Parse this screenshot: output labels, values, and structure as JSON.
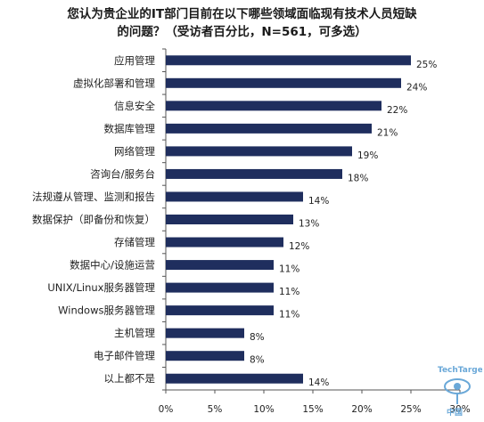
{
  "chart_data": {
    "type": "bar",
    "orientation": "horizontal",
    "title_line1": "您认为贵企业的IT部门目前在以下哪些领域面临现有技术人员短缺",
    "title_line2": "的问题？（受访者百分比，N=561，可多选）",
    "categories": [
      "应用管理",
      "虚拟化部署和管理",
      "信息安全",
      "数据库管理",
      "网络管理",
      "咨询台/服务台",
      "法规遵从管理、监测和报告",
      "数据保护（即备份和恢复）",
      "存储管理",
      "数据中心/设施运营",
      "UNIX/Linux服务器管理",
      "Windows服务器管理",
      "主机管理",
      "电子邮件管理",
      "以上都不是"
    ],
    "values": [
      25,
      24,
      22,
      21,
      19,
      18,
      14,
      13,
      12,
      11,
      11,
      11,
      8,
      8,
      14
    ],
    "value_labels": [
      "25%",
      "24%",
      "22%",
      "21%",
      "19%",
      "18%",
      "14%",
      "13%",
      "12%",
      "11%",
      "11%",
      "11%",
      "8%",
      "8%",
      "14%"
    ],
    "xlim": [
      0,
      30
    ],
    "ticks": [
      0,
      5,
      10,
      15,
      20,
      25,
      30
    ],
    "tick_labels": [
      "0%",
      "5%",
      "10%",
      "15%",
      "20%",
      "25%",
      "30%"
    ],
    "grid": false,
    "bar_color": "#1f2e5e"
  },
  "logo": {
    "text1": "TechTarget",
    "text2": "中国",
    "color": "#6aa8d8"
  }
}
